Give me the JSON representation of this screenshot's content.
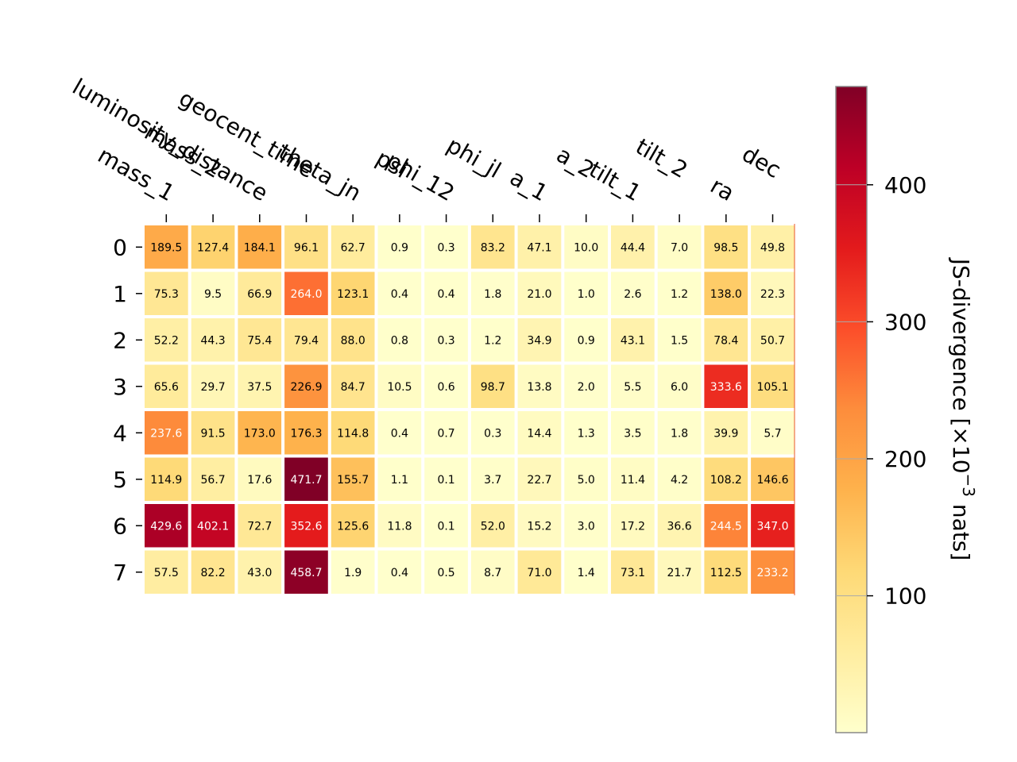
{
  "chart_data": {
    "type": "heatmap",
    "columns": [
      "mass_1",
      "mass_2",
      "luminosity_distance",
      "geocent_time",
      "theta_jn",
      "psi",
      "phi_12",
      "phi_jl",
      "a_1",
      "a_2",
      "tilt_1",
      "tilt_2",
      "ra",
      "dec"
    ],
    "rows": [
      "0",
      "1",
      "2",
      "3",
      "4",
      "5",
      "6",
      "7"
    ],
    "values": [
      [
        189.5,
        127.4,
        184.1,
        96.1,
        62.7,
        0.9,
        0.3,
        83.2,
        47.1,
        10.0,
        44.4,
        7.0,
        98.5,
        49.8
      ],
      [
        75.3,
        9.5,
        66.9,
        264.0,
        123.1,
        0.4,
        0.4,
        1.8,
        21.0,
        1.0,
        2.6,
        1.2,
        138.0,
        22.3
      ],
      [
        52.2,
        44.3,
        75.4,
        79.4,
        88.0,
        0.8,
        0.3,
        1.2,
        34.9,
        0.9,
        43.1,
        1.5,
        78.4,
        50.7
      ],
      [
        65.6,
        29.7,
        37.5,
        226.9,
        84.7,
        10.5,
        0.6,
        98.7,
        13.8,
        2.0,
        5.5,
        6.0,
        333.6,
        105.1
      ],
      [
        237.6,
        91.5,
        173.0,
        176.3,
        114.8,
        0.4,
        0.7,
        0.3,
        14.4,
        1.3,
        3.5,
        1.8,
        39.9,
        5.7
      ],
      [
        114.9,
        56.7,
        17.6,
        471.7,
        155.7,
        1.1,
        0.1,
        3.7,
        22.7,
        5.0,
        11.4,
        4.2,
        108.2,
        146.6
      ],
      [
        429.6,
        402.1,
        72.7,
        352.6,
        125.6,
        11.8,
        0.1,
        52.0,
        15.2,
        3.0,
        17.2,
        36.6,
        244.5,
        347.0
      ],
      [
        57.5,
        82.2,
        43.0,
        458.7,
        1.9,
        0.4,
        0.5,
        8.7,
        71.0,
        1.4,
        73.1,
        21.7,
        112.5,
        233.2
      ]
    ],
    "colorbar": {
      "label_main": "JS-divergence [×10",
      "label_sup": "−3",
      "label_tail": " nats]",
      "ticks": [
        100,
        200,
        300,
        400
      ],
      "range": [
        0.1,
        471.7
      ],
      "colormap": "YlOrRd"
    }
  }
}
